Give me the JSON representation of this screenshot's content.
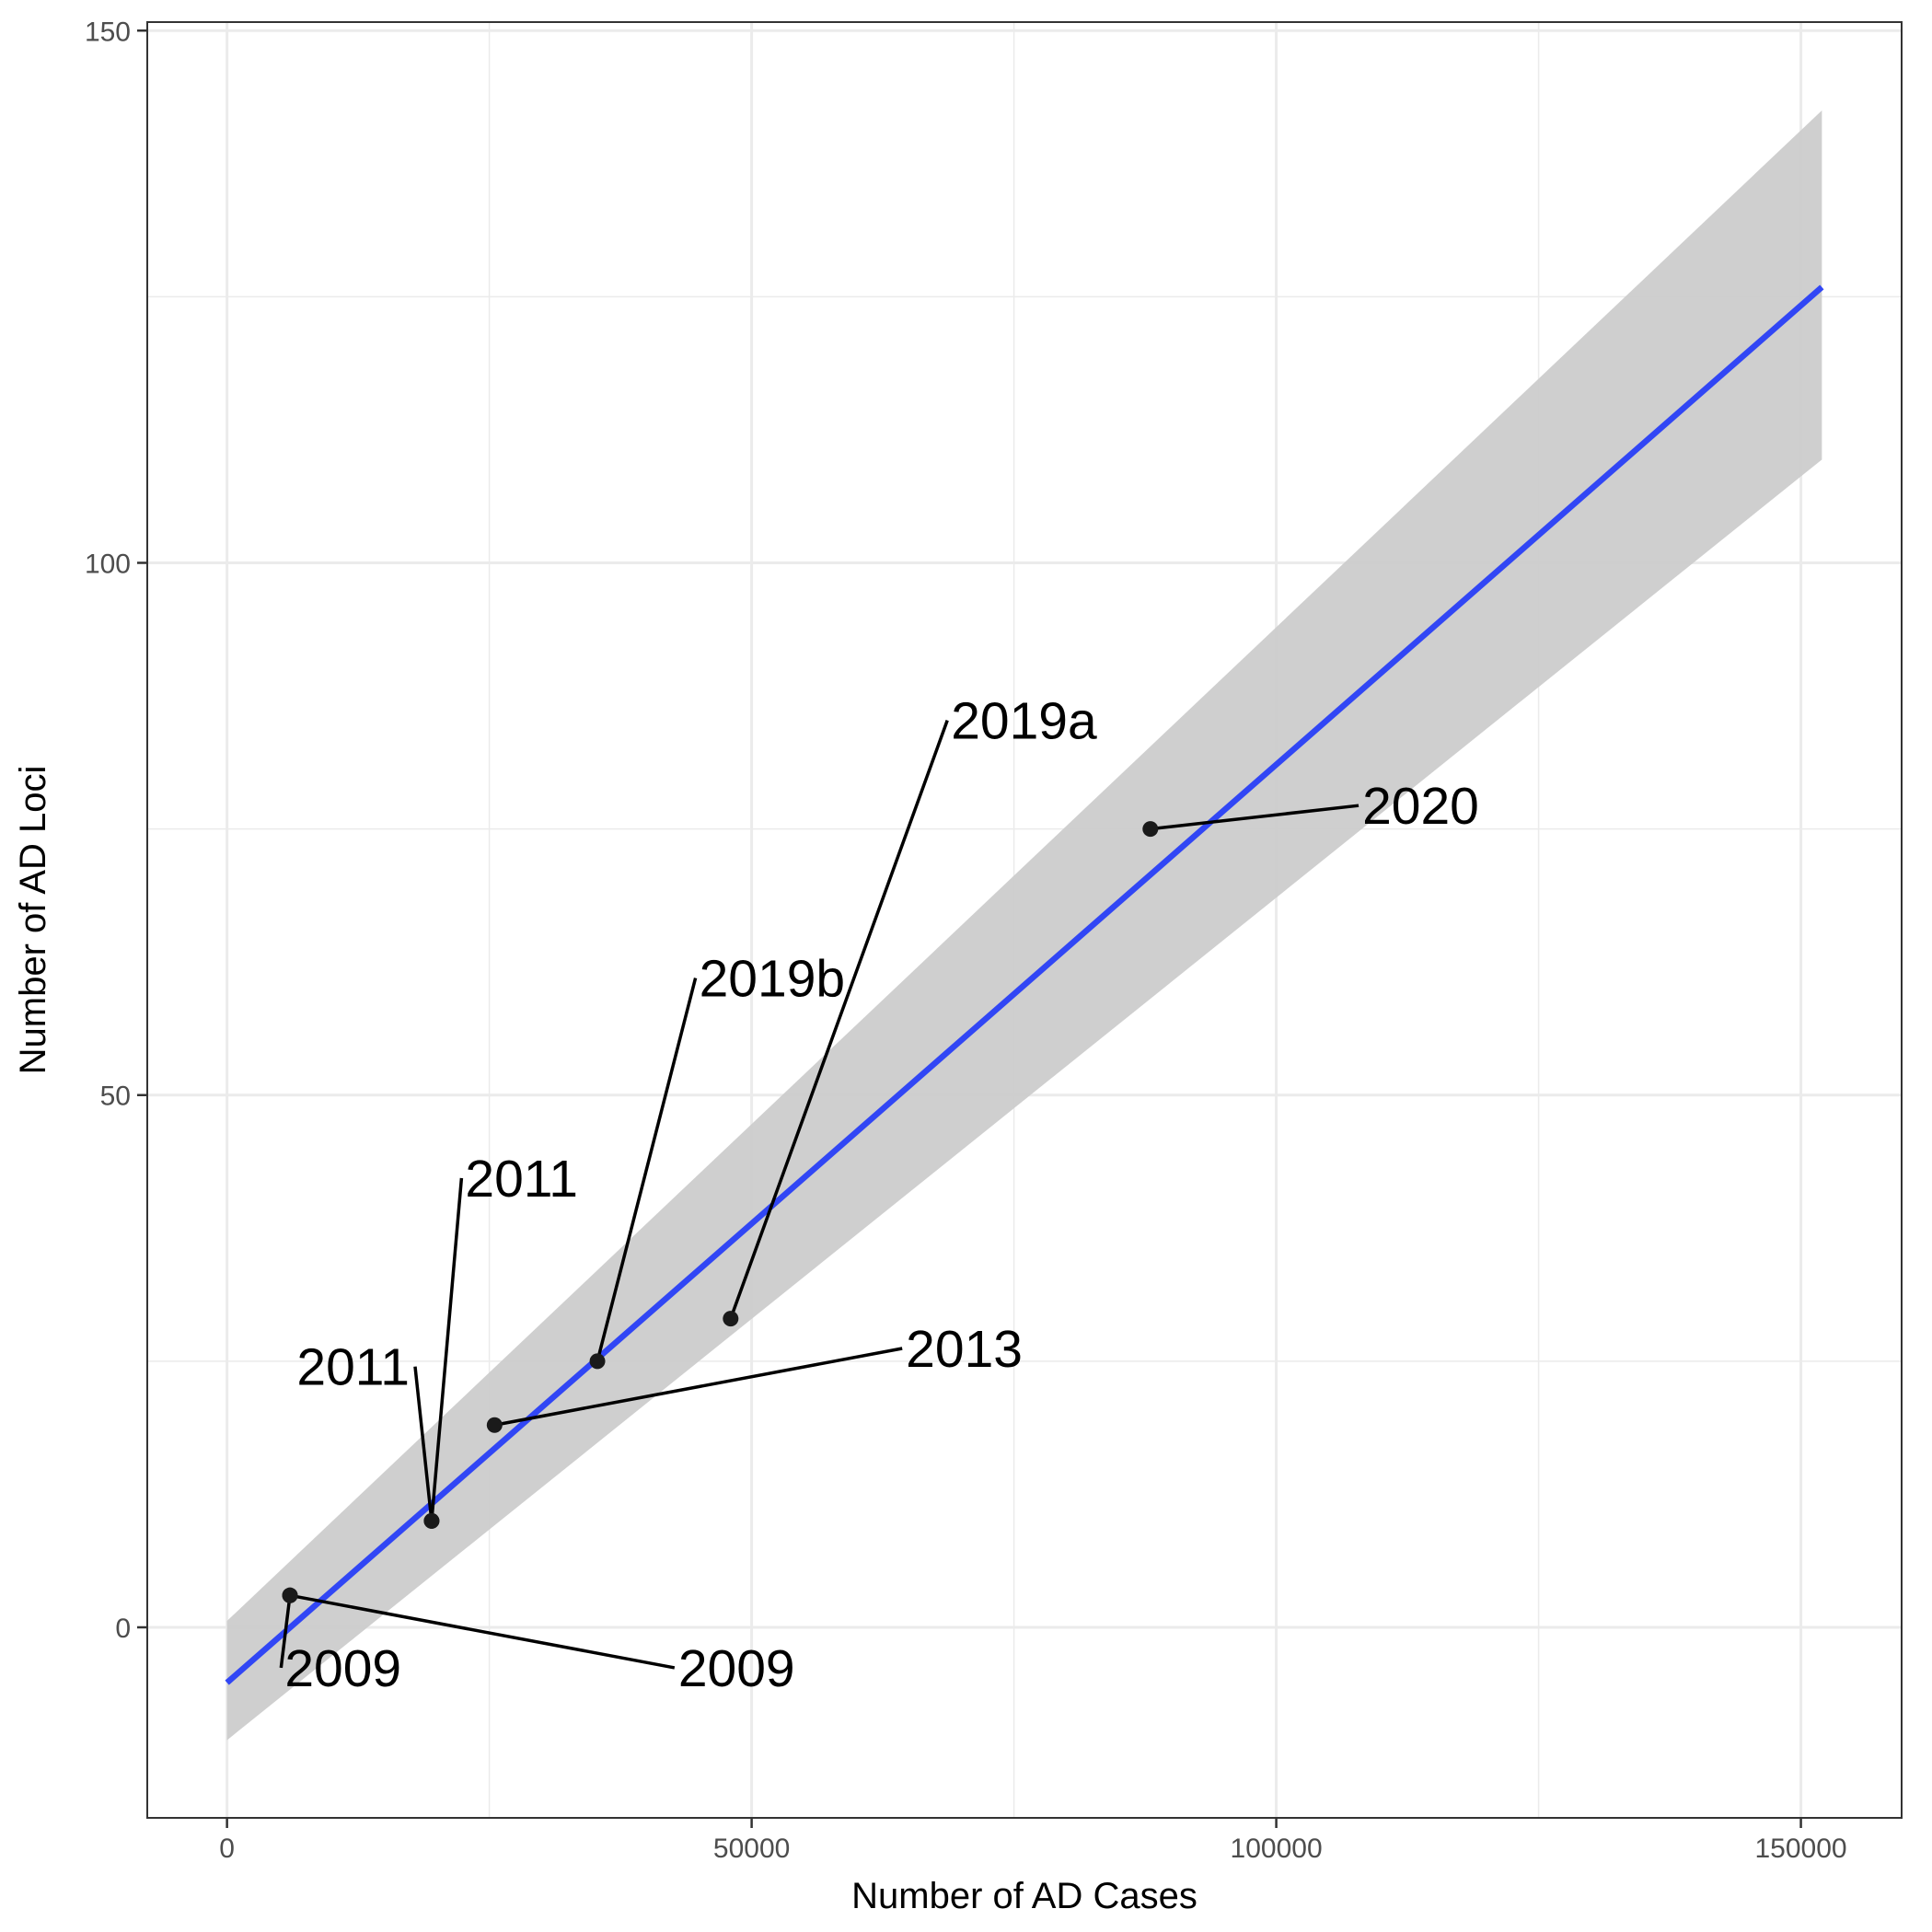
{
  "chart_data": {
    "type": "scatter",
    "xlabel": "Number of AD Cases",
    "ylabel": "Number of AD Loci",
    "xlim": [
      -7600,
      159600
    ],
    "ylim": [
      -17.9,
      150.8
    ],
    "x_ticks": [
      0,
      50000,
      100000,
      150000
    ],
    "y_ticks": [
      0,
      50,
      100,
      150
    ],
    "x_tick_labels": [
      "0",
      "50000",
      "100000",
      "150000"
    ],
    "y_tick_labels": [
      "0",
      "50",
      "100",
      "150"
    ],
    "grid": true,
    "points": [
      {
        "x": 6000,
        "y": 3,
        "label": "2009"
      },
      {
        "x": 6000,
        "y": 3,
        "label": "2009"
      },
      {
        "x": 19500,
        "y": 10,
        "label": "2011"
      },
      {
        "x": 19500,
        "y": 10,
        "label": "2011"
      },
      {
        "x": 25500,
        "y": 19,
        "label": "2013"
      },
      {
        "x": 35300,
        "y": 25,
        "label": "2019b"
      },
      {
        "x": 48000,
        "y": 29,
        "label": "2019a"
      },
      {
        "x": 88000,
        "y": 75,
        "label": "2020"
      }
    ],
    "annotations": [
      {
        "label": "2009",
        "text_x": 5500,
        "text_y": -3.8,
        "anchor": "start"
      },
      {
        "label": "2009",
        "text_x": 43000,
        "text_y": -3.8,
        "anchor": "start"
      },
      {
        "label": "2011",
        "text_x": 17400,
        "text_y": 24.5,
        "anchor": "end"
      },
      {
        "label": "2011",
        "text_x": 22700,
        "text_y": 42.2,
        "anchor": "start"
      },
      {
        "label": "2013",
        "text_x": 64700,
        "text_y": 26.2,
        "anchor": "start"
      },
      {
        "label": "2019b",
        "text_x": 45000,
        "text_y": 61.0,
        "anchor": "start"
      },
      {
        "label": "2019a",
        "text_x": 69000,
        "text_y": 85.2,
        "anchor": "start"
      },
      {
        "label": "2020",
        "text_x": 108200,
        "text_y": 77.2,
        "anchor": "start"
      }
    ],
    "fit": {
      "x": [
        0,
        152000
      ],
      "y": [
        -5.2,
        125.9
      ],
      "band_lower": [
        -10.6,
        109.7
      ],
      "band_upper": [
        0.6,
        142.5
      ],
      "line_color": "#3146f5",
      "band_color": "#cccccc"
    },
    "point_color": "#1a1a1a",
    "panel_border_color": "#333333",
    "grid_color": "#ebebeb"
  }
}
